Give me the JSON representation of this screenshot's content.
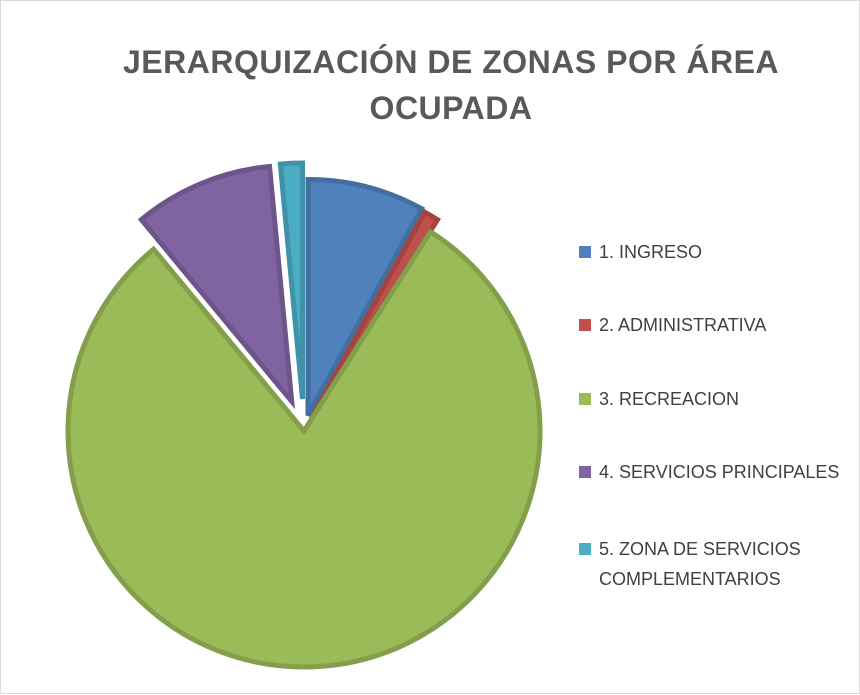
{
  "chart_data": {
    "type": "pie",
    "title": "JERARQUIZACIÓN DE ZONAS POR ÁREA OCUPADA",
    "categories": [
      "1. INGRESO",
      "2. ADMINISTRATIVA",
      "3. RECREACION",
      "4. SERVICIOS PRINCIPALES",
      "5. ZONA DE SERVICIOS COMPLEMENTARIOS"
    ],
    "values": [
      8,
      1,
      80,
      9.5,
      1.5
    ],
    "colors": [
      "#4f81bd",
      "#c0504d",
      "#9bbb59",
      "#8064a2",
      "#4bacc6"
    ],
    "legend": "right"
  }
}
